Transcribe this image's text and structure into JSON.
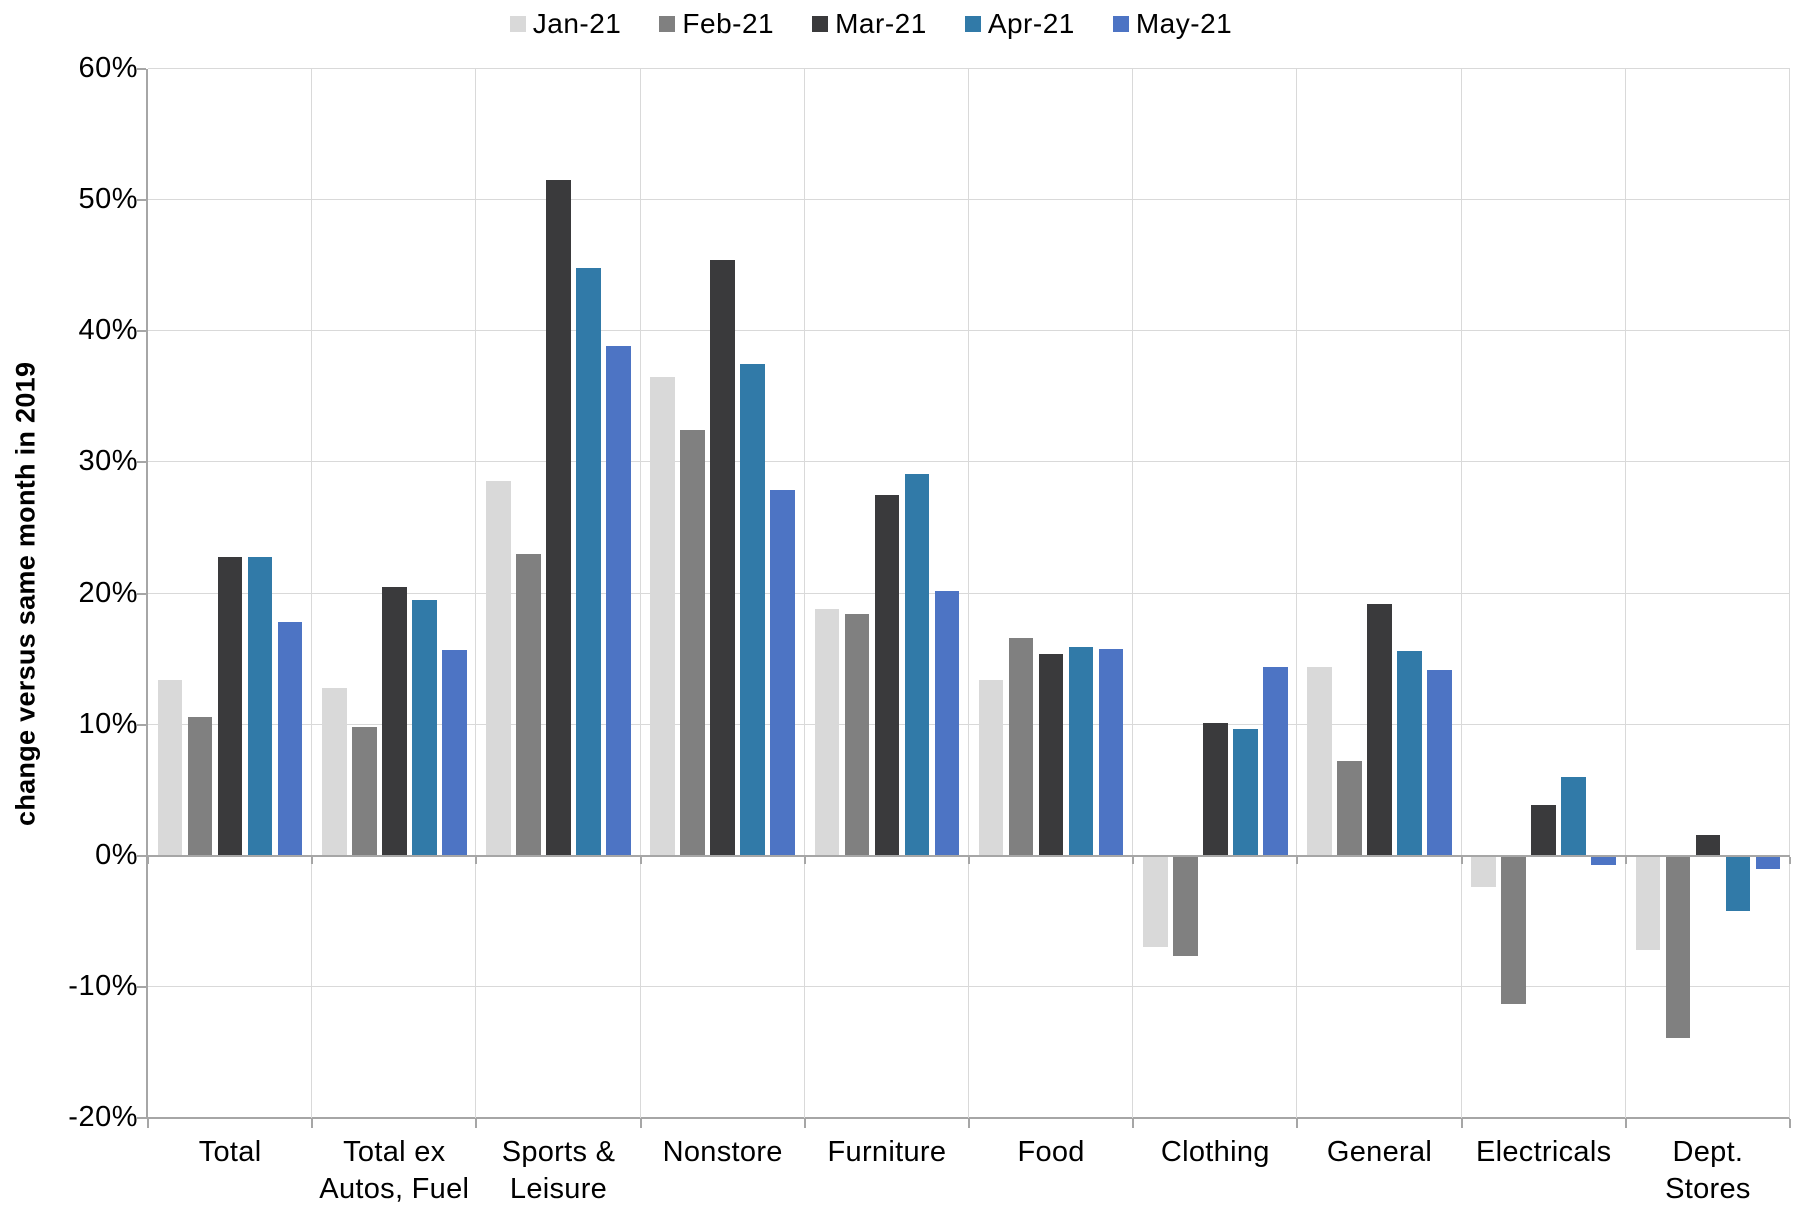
{
  "chart_data": {
    "type": "bar",
    "title": "",
    "ylabel": "change versus same month in 2019",
    "xlabel": "",
    "grid": true,
    "legend_position": "top",
    "y_axis": {
      "min": -20,
      "max": 60,
      "step": 10,
      "tick_labels": [
        "60%",
        "50%",
        "40%",
        "30%",
        "20%",
        "10%",
        "0%",
        "-10%",
        "-20%"
      ]
    },
    "categories": [
      "Total",
      "Total ex\nAutos, Fuel",
      "Sports &\nLeisure",
      "Nonstore",
      "Furniture",
      "Food",
      "Clothing",
      "General",
      "Electricals",
      "Dept.\nStores"
    ],
    "series": [
      {
        "name": "Jan-21",
        "color": "#d9d9d9",
        "values": [
          13.4,
          12.8,
          28.6,
          36.5,
          18.8,
          13.4,
          -6.9,
          14.4,
          -2.3,
          -7.1
        ]
      },
      {
        "name": "Feb-21",
        "color": "#808080",
        "values": [
          10.6,
          9.8,
          23.0,
          32.5,
          18.4,
          16.6,
          -7.6,
          7.2,
          -11.2,
          -13.8
        ]
      },
      {
        "name": "Mar-21",
        "color": "#3a3a3c",
        "values": [
          22.8,
          20.5,
          51.5,
          45.4,
          27.5,
          15.4,
          10.1,
          19.2,
          3.9,
          1.6
        ]
      },
      {
        "name": "Apr-21",
        "color": "#317aa8",
        "values": [
          22.8,
          19.5,
          44.8,
          37.5,
          29.1,
          15.9,
          9.7,
          15.6,
          6.0,
          -4.1
        ]
      },
      {
        "name": "May-21",
        "color": "#4d74c4",
        "values": [
          17.8,
          15.7,
          38.9,
          27.9,
          20.2,
          15.8,
          14.4,
          14.2,
          -0.6,
          -0.9
        ]
      }
    ],
    "colors": {
      "gridline": "#d9d9d9",
      "axis": "#a6a6a6",
      "text": "#000000",
      "background": "#ffffff"
    }
  }
}
